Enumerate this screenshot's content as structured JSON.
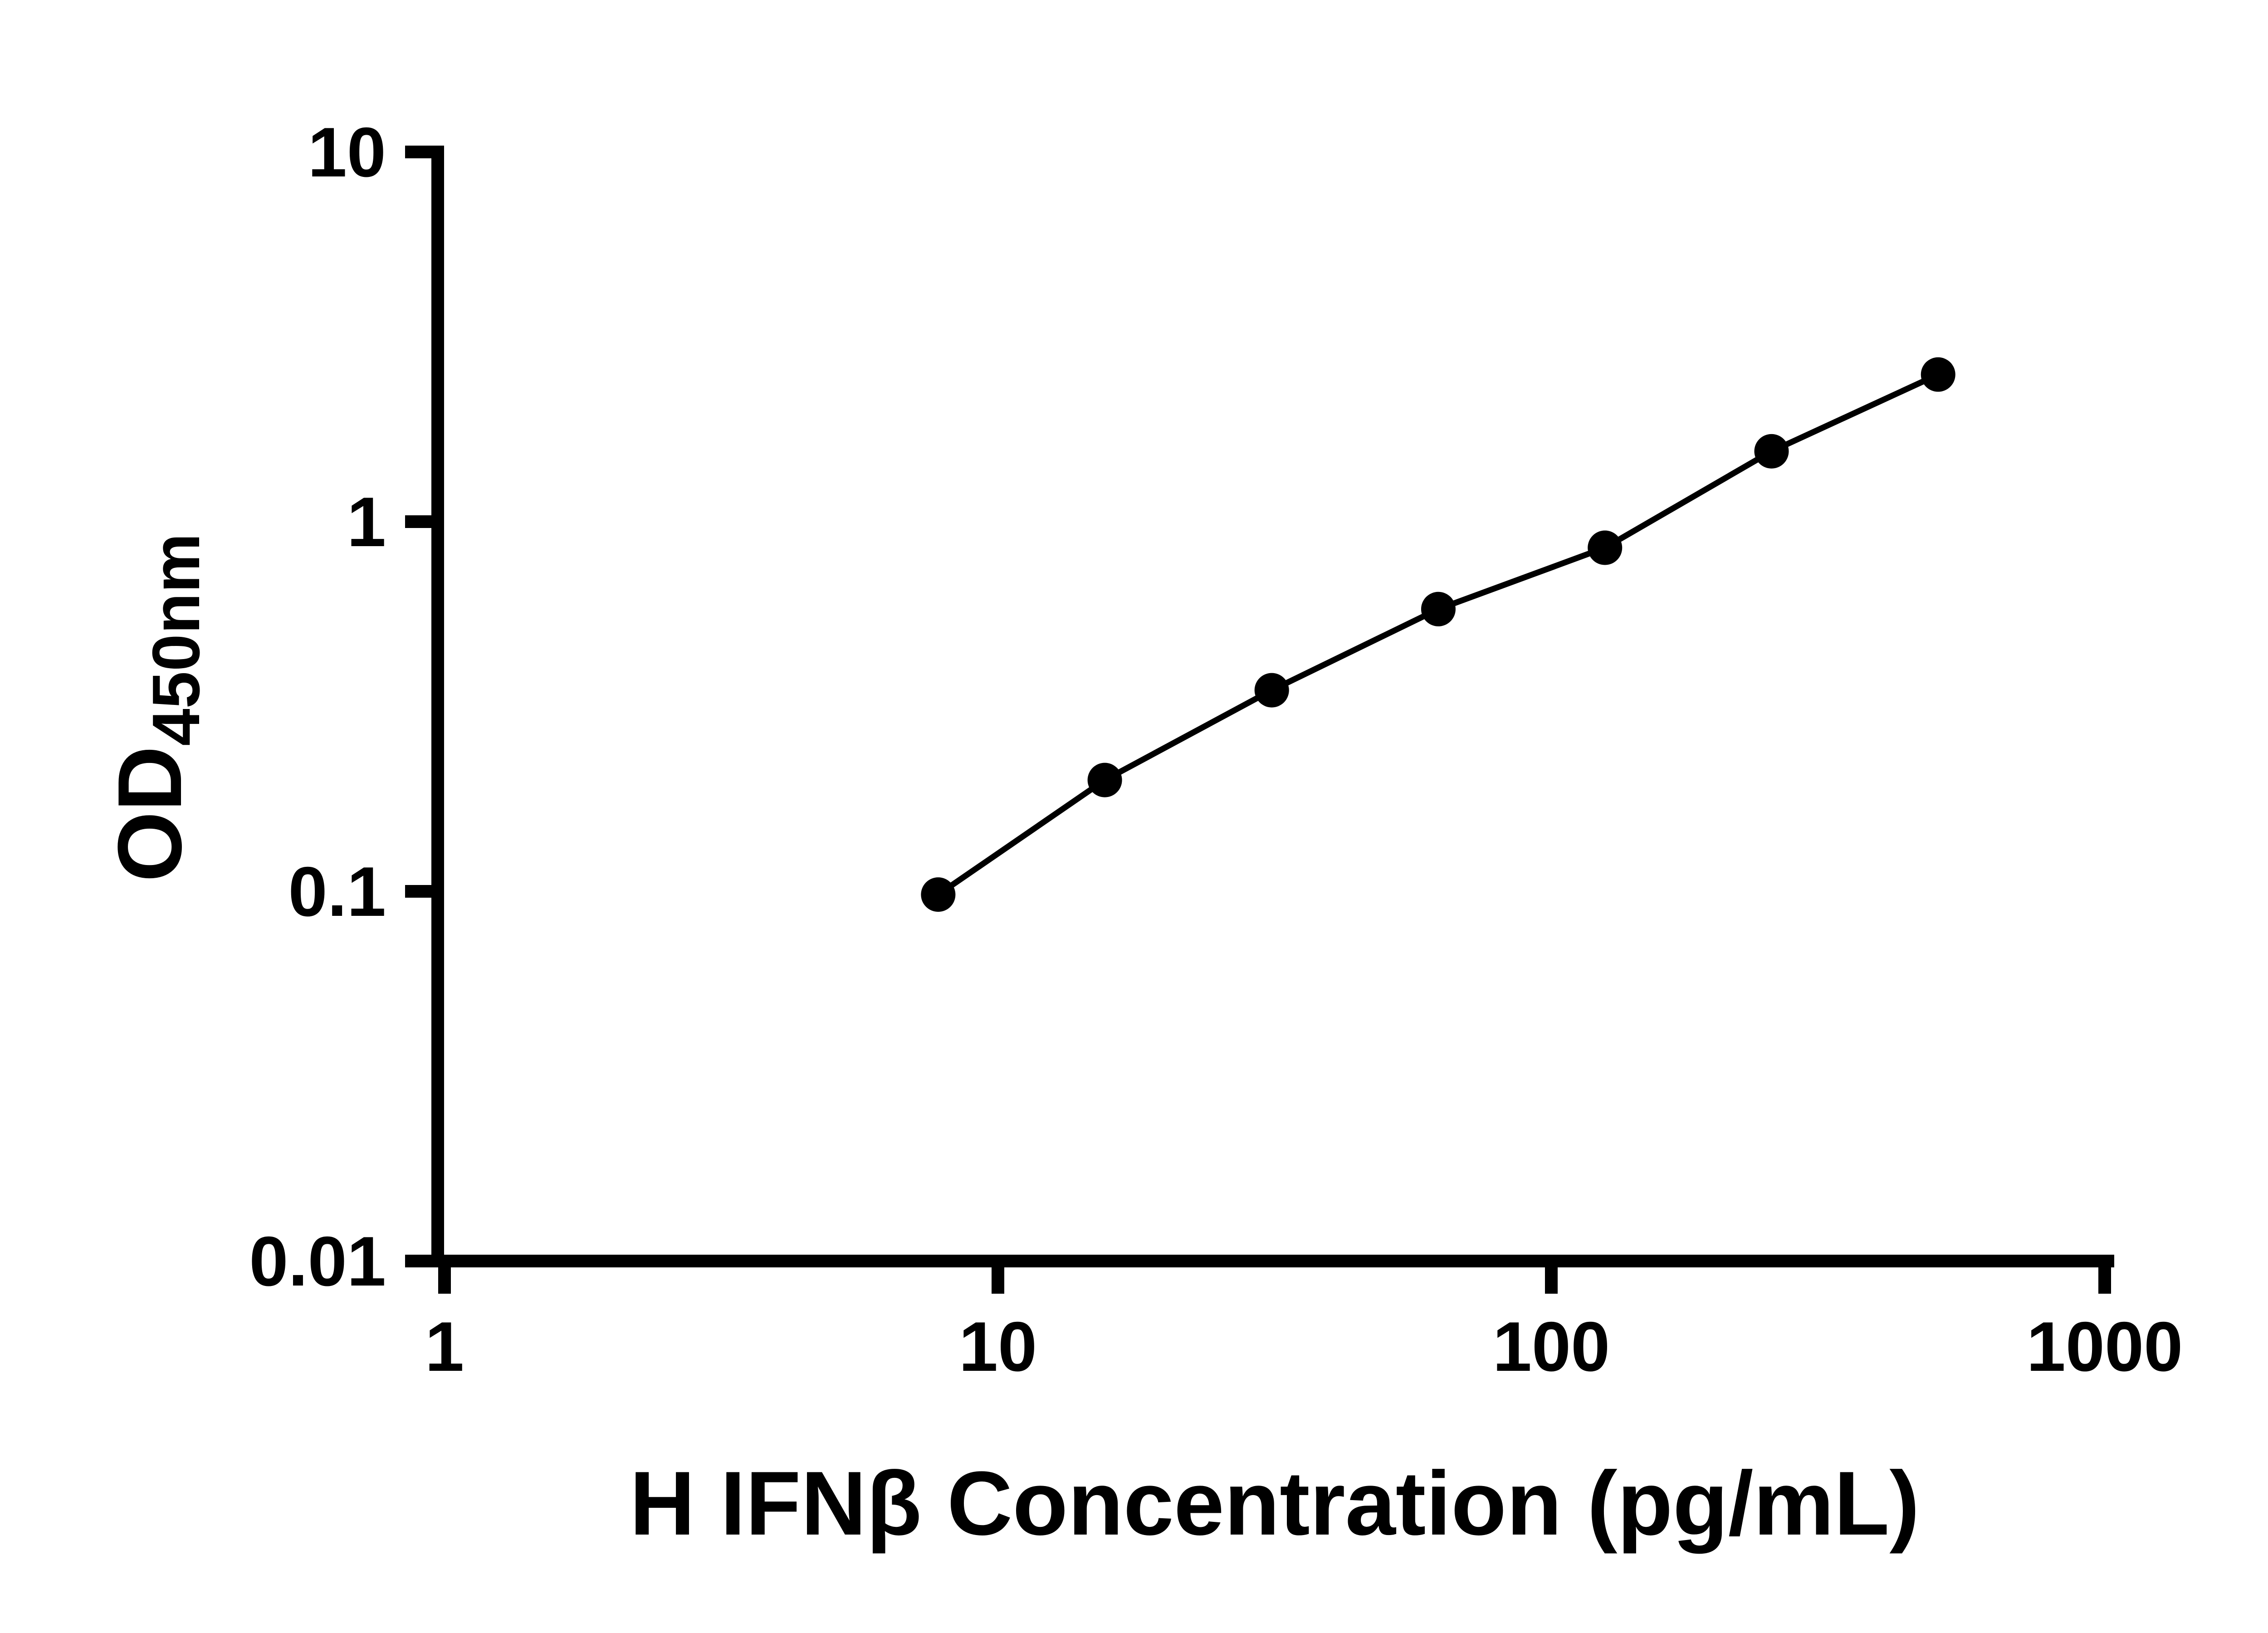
{
  "figure": {
    "background": "#ffffff"
  },
  "chart_data": {
    "type": "scatter",
    "subtype": "elisa-standard-curve",
    "title": "",
    "xlabel": "H IFNβ Concentration (pg/mL)",
    "ylabel_main": "OD",
    "ylabel_sub": "450nm",
    "x_scale": "log10",
    "y_scale": "log10",
    "xlim": [
      1,
      1000
    ],
    "ylim": [
      0.01,
      10
    ],
    "x_ticks": [
      {
        "value": 1,
        "label": "1"
      },
      {
        "value": 10,
        "label": "10"
      },
      {
        "value": 100,
        "label": "100"
      },
      {
        "value": 1000,
        "label": "1000"
      }
    ],
    "y_ticks": [
      {
        "value": 0.01,
        "label": "0.01"
      },
      {
        "value": 0.1,
        "label": "0.1"
      },
      {
        "value": 1,
        "label": "1"
      },
      {
        "value": 10,
        "label": "10"
      }
    ],
    "grid": false,
    "legend": false,
    "axis_color": "#000000",
    "line_color": "#000000",
    "marker_color": "#000000",
    "marker_shape": "circle",
    "points": [
      {
        "x": 7.8,
        "y": 0.098
      },
      {
        "x": 15.6,
        "y": 0.2
      },
      {
        "x": 31.25,
        "y": 0.35
      },
      {
        "x": 62.5,
        "y": 0.58
      },
      {
        "x": 125,
        "y": 0.85
      },
      {
        "x": 250,
        "y": 1.55
      },
      {
        "x": 500,
        "y": 2.5
      }
    ]
  }
}
